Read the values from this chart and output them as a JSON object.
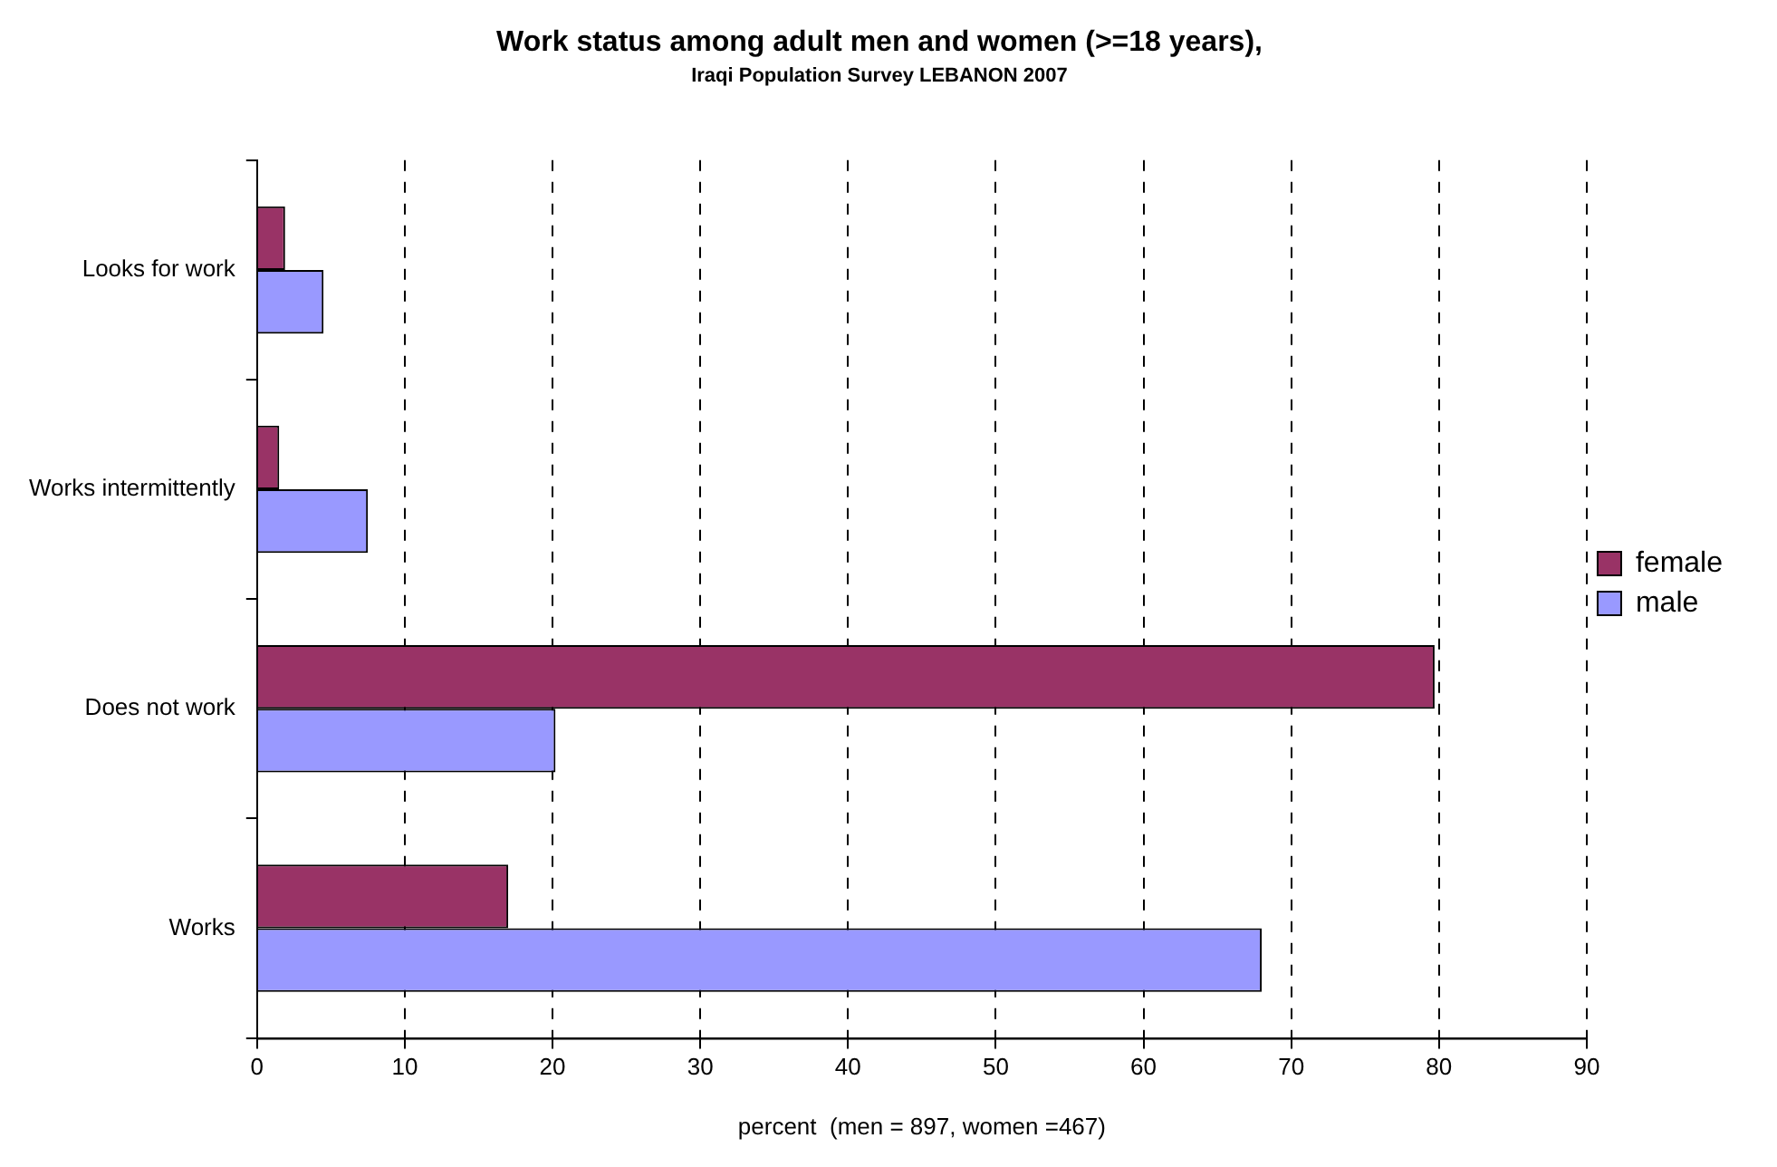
{
  "chart_data": {
    "type": "bar",
    "orientation": "horizontal",
    "title": "Work status among adult men and women (>=18 years),",
    "subtitle": "Iraqi Population Survey LEBANON 2007",
    "xlabel": "percent  (men = 897, women =467)",
    "categories": [
      "Looks for work",
      "Works intermittently",
      "Does not work",
      "Works"
    ],
    "series": [
      {
        "name": "female",
        "color": "#993366",
        "values": [
          1.9,
          1.5,
          79.7,
          17.0
        ]
      },
      {
        "name": "male",
        "color": "#9999ff",
        "values": [
          4.5,
          7.5,
          20.2,
          68.0
        ]
      }
    ],
    "xlim": [
      0,
      90
    ],
    "xticks": [
      0,
      10,
      20,
      30,
      40,
      50,
      60,
      70,
      80,
      90
    ],
    "grid": "x",
    "legend": "right"
  }
}
